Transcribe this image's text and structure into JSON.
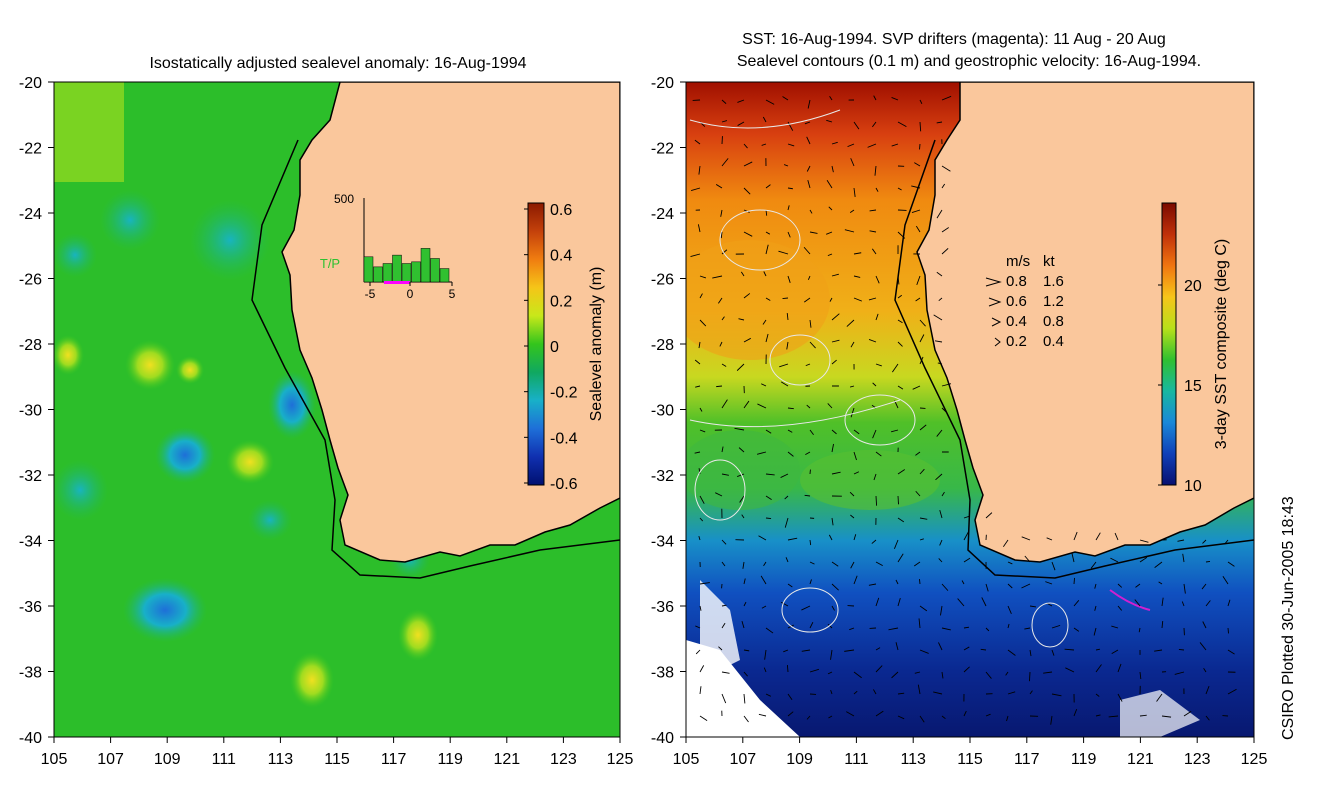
{
  "left_panel": {
    "title": "Isostatically adjusted sealevel anomaly: 16-Aug-1994",
    "x_ticks": [
      "105",
      "107",
      "109",
      "111",
      "113",
      "115",
      "117",
      "119",
      "121",
      "123",
      "125"
    ],
    "y_ticks": [
      "-20",
      "-22",
      "-24",
      "-26",
      "-28",
      "-30",
      "-32",
      "-34",
      "-36",
      "-38",
      "-40"
    ],
    "colorbar": {
      "label": "Sealevel anomaly (m)",
      "ticks": [
        "0.6",
        "0.4",
        "0.2",
        "0",
        "-0.2",
        "-0.4",
        "-0.6"
      ],
      "colors": [
        "#8b1a00",
        "#c4410b",
        "#f07d10",
        "#f5c518",
        "#c8e81a",
        "#34c51c",
        "#10a860",
        "#18b0c8",
        "#1e6fd8",
        "#1030b0",
        "#001070"
      ]
    },
    "inset": {
      "ymax_label": "500",
      "series_label": "T/P",
      "x_ticks": [
        "-5",
        "0",
        "5"
      ],
      "bar_values": [
        150,
        90,
        110,
        160,
        110,
        120,
        200,
        140,
        80
      ],
      "ymax": 500
    }
  },
  "right_panel": {
    "title_line1": "SST: 16-Aug-1994. SVP drifters (magenta): 11 Aug - 20 Aug",
    "title_line2": "Sealevel contours (0.1 m) and geostrophic velocity: 16-Aug-1994.",
    "x_ticks": [
      "105",
      "107",
      "109",
      "111",
      "113",
      "115",
      "117",
      "119",
      "121",
      "123",
      "125"
    ],
    "y_ticks": [
      "-20",
      "-22",
      "-24",
      "-26",
      "-28",
      "-30",
      "-32",
      "-34",
      "-36",
      "-38",
      "-40"
    ],
    "colorbar": {
      "label": "3-day SST composite (deg C)",
      "ticks": [
        "20",
        "15",
        "10"
      ],
      "colors": [
        "#7a0a00",
        "#c0300a",
        "#f07510",
        "#f6c51a",
        "#b8e01a",
        "#30c030",
        "#18b8a0",
        "#1a88d8",
        "#1040b8",
        "#081070"
      ]
    },
    "velocity_legend": {
      "header_ms": "m/s",
      "header_kt": "kt",
      "rows": [
        {
          "ms": "0.8",
          "kt": "1.6"
        },
        {
          "ms": "0.6",
          "kt": "1.2"
        },
        {
          "ms": "0.4",
          "kt": "0.8"
        },
        {
          "ms": "0.2",
          "kt": "0.4"
        }
      ]
    }
  },
  "land_color": "#fac79c",
  "credit": "CSIRO Plotted 30-Jun-2005 18:43"
}
